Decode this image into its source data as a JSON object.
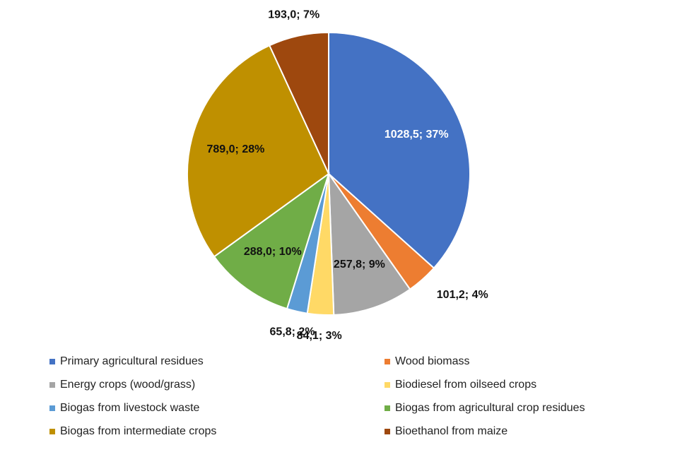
{
  "chart_data": {
    "type": "pie",
    "categories": [
      "Primary agricultural residues",
      "Wood biomass",
      "Energy crops (wood/grass)",
      "Biodiesel from oilseed crops",
      "Biogas from livestock waste",
      "Biogas from agricultural crop residues",
      "Biogas from intermediate crops",
      "Bioethanol from maize"
    ],
    "values": [
      1028.5,
      101.2,
      257.8,
      84.1,
      65.8,
      288.0,
      789.0,
      193.0
    ],
    "value_labels": [
      "1028,5; 37%",
      "101,2; 4%",
      "257,8; 9%",
      "84,1; 3%",
      "65,8; 2%",
      "288,0; 10%",
      "789,0; 28%",
      "193,0; 7%"
    ],
    "colors": [
      "#4472c4",
      "#ed7d31",
      "#a5a5a5",
      "#ffd966",
      "#5b9bd5",
      "#70ad47",
      "#bf9000",
      "#9e480e"
    ],
    "legend": "bottom"
  }
}
